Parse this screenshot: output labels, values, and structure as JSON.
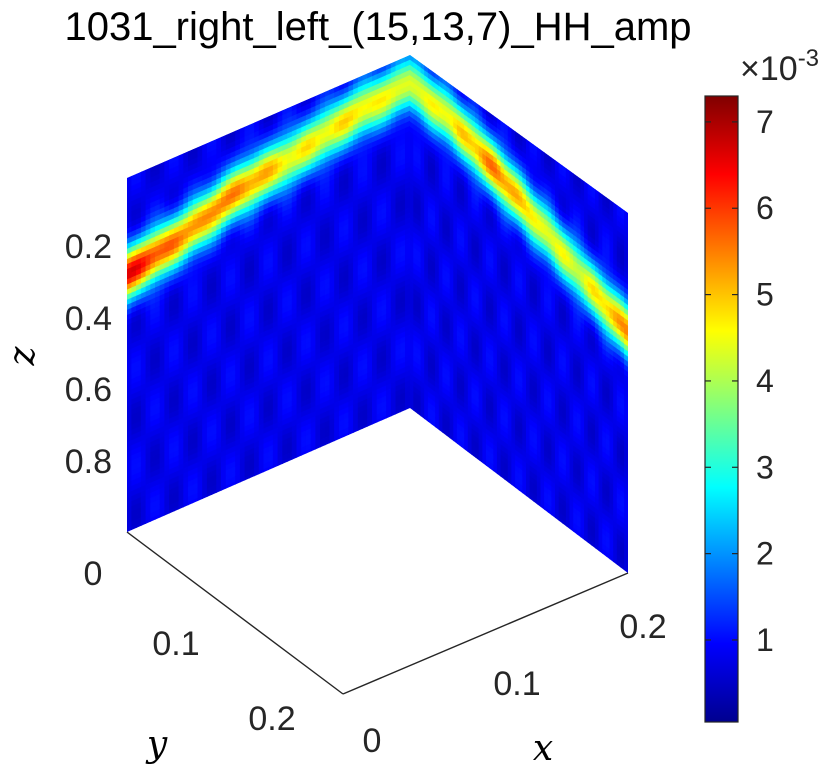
{
  "chart_data": {
    "type": "heatmap",
    "title": "1031_right_left_(15,13,7)_HH_amp",
    "xlabel": "x",
    "ylabel": "y",
    "zlabel": "z",
    "x_ticks": [
      "0",
      "0.1",
      "0.2"
    ],
    "y_ticks": [
      "0",
      "0.1",
      "0.2"
    ],
    "z_ticks": [
      "0.2",
      "0.4",
      "0.6",
      "0.8"
    ],
    "z_direction": "reversed",
    "view": "3-D orthogonal slice cube, two vertical side faces",
    "colormap": "jet",
    "colorbar": {
      "ticks": [
        "1",
        "2",
        "3",
        "4",
        "5",
        "6",
        "7"
      ],
      "range": [
        0.05,
        7.3
      ],
      "exponent_label": "×10",
      "exponent_value": "-3"
    },
    "left_face": {
      "plane": "y–z slice",
      "band_z_center": [
        0.27,
        0.23,
        0.17,
        0.14,
        0.1,
        0.08
      ],
      "band_peak": [
        6.6,
        5.4,
        5.5,
        4.6,
        4.8,
        4.4
      ],
      "background": 0.8
    },
    "right_face": {
      "plane": "x–z slice",
      "band_z_center": [
        0.08,
        0.1,
        0.15,
        0.21,
        0.27,
        0.33
      ],
      "band_peak": [
        4.4,
        4.7,
        5.6,
        4.5,
        4.4,
        5.5
      ],
      "background": 0.8
    }
  }
}
